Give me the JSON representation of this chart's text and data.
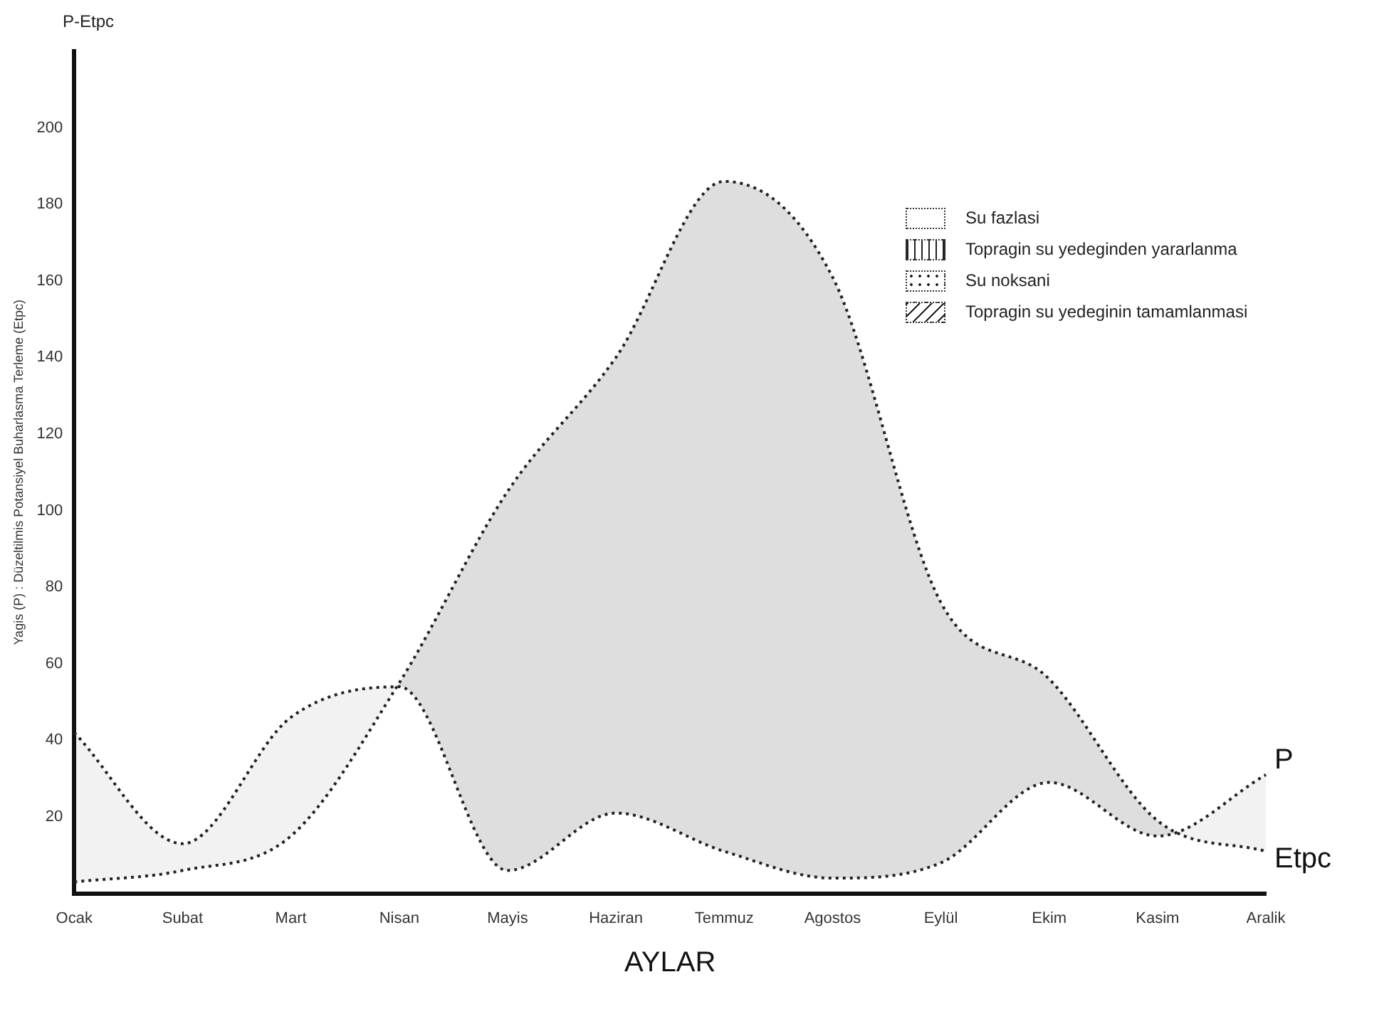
{
  "chart_data": {
    "type": "line",
    "xlabel": "AYLAR",
    "ylabel": "Yagis (P) : Düzeltilmis Potansiyel Buharlasma Terleme (Etpc)",
    "categories": [
      "Ocak",
      "Subat",
      "Mart",
      "Nisan",
      "Mayis",
      "Haziran",
      "Temmuz",
      "Agostos",
      "Eylül",
      "Ekim",
      "Kasim",
      "Aralik"
    ],
    "series": [
      {
        "name": "P",
        "color": "#222222",
        "values": [
          42,
          13,
          46,
          54,
          6,
          21,
          11,
          4,
          8,
          29,
          15,
          31
        ]
      },
      {
        "name": "Etpc",
        "color": "#222222",
        "values": [
          3,
          6,
          15,
          55,
          105,
          140,
          186,
          161,
          76,
          56,
          19,
          11
        ]
      }
    ],
    "ylim": [
      0,
      220
    ],
    "yticks": [
      20,
      40,
      60,
      80,
      100,
      120,
      140,
      160,
      180,
      200
    ],
    "grid": false,
    "legend": false,
    "marker": "none",
    "line_style": "dotted",
    "annotations": [
      "P-Etpc",
      "Su fazlasi",
      "Topragin su yedeginden yararlanma",
      "Su noksani",
      "Topragin su yedeginin tamamlanmasi"
    ]
  }
}
